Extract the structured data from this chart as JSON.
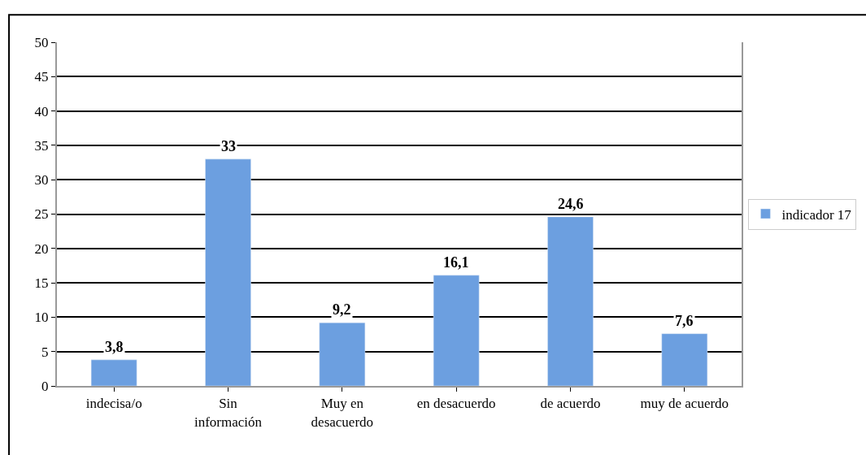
{
  "chart_data": {
    "type": "bar",
    "categories": [
      "indecisa/o",
      "Sin\ninformación",
      "Muy en\ndesacuerdo",
      "en desacuerdo",
      "de acuerdo",
      "muy de acuerdo"
    ],
    "series": [
      {
        "name": "indicador 17",
        "color": "#6c9fe0",
        "values": [
          3.8,
          33,
          9.2,
          16.1,
          24.6,
          7.6
        ],
        "value_labels": [
          "3,8",
          "33",
          "9,2",
          "16,1",
          "24,6",
          "7,6"
        ]
      }
    ],
    "ylim": [
      0,
      50
    ],
    "yticks": [
      0,
      5,
      10,
      15,
      20,
      25,
      30,
      35,
      40,
      45,
      50
    ],
    "grid": "y",
    "legend": "right"
  }
}
